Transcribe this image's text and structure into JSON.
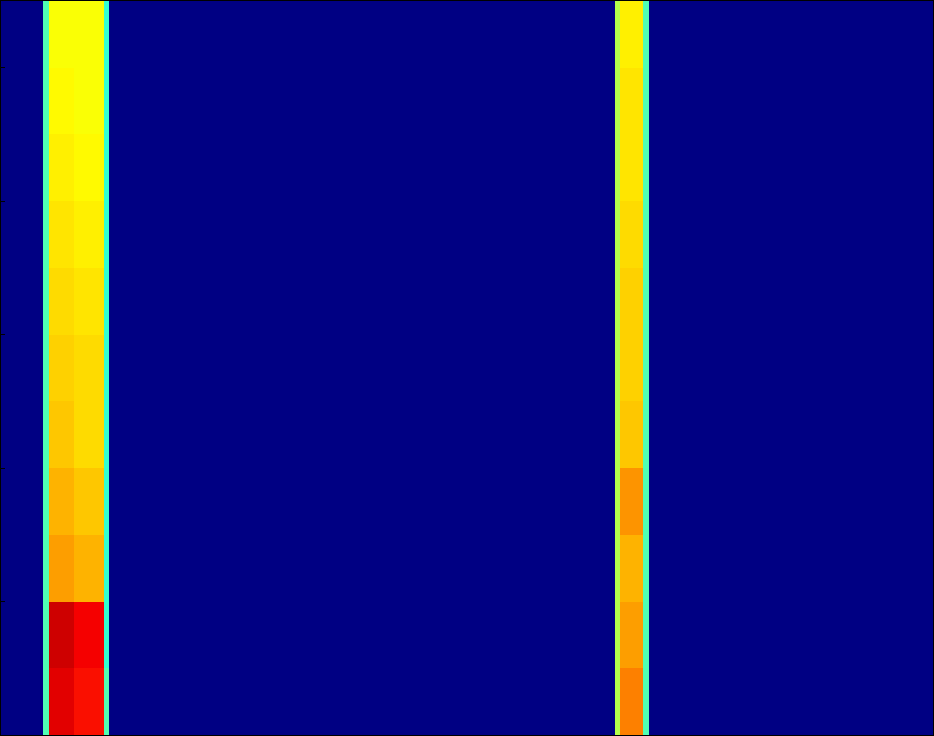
{
  "chart_data": {
    "type": "heatmap",
    "x": [
      0,
      0.315,
      0.36,
      0.55,
      0.77,
      0.81,
      4.61,
      4.65,
      4.82,
      4.87,
      7
    ],
    "y": [
      0,
      0.5,
      1.0,
      1.5,
      2.0,
      2.5,
      3.0,
      3.5,
      4.0,
      4.5,
      5.0,
      5.5
    ],
    "z": [
      [
        0,
        0.45,
        0.9,
        0.86,
        0.45,
        0,
        0.55,
        0.75,
        0.45,
        0
      ],
      [
        0,
        0.45,
        0.92,
        0.88,
        0.42,
        0,
        0.55,
        0.72,
        0.45,
        0
      ],
      [
        0,
        0.45,
        0.72,
        0.7,
        0.42,
        0,
        0.55,
        0.7,
        0.45,
        0
      ],
      [
        0,
        0.45,
        0.7,
        0.68,
        0.42,
        0,
        0.55,
        0.73,
        0.45,
        0
      ],
      [
        0,
        0.45,
        0.68,
        0.66,
        0.42,
        0,
        0.55,
        0.68,
        0.45,
        0
      ],
      [
        0,
        0.45,
        0.67,
        0.66,
        0.42,
        0,
        0.55,
        0.67,
        0.45,
        0
      ],
      [
        0,
        0.45,
        0.66,
        0.65,
        0.42,
        0,
        0.55,
        0.67,
        0.45,
        0
      ],
      [
        0,
        0.45,
        0.65,
        0.64,
        0.42,
        0,
        0.55,
        0.66,
        0.45,
        0
      ],
      [
        0,
        0.45,
        0.64,
        0.63,
        0.42,
        0,
        0.55,
        0.65,
        0.45,
        0
      ],
      [
        0,
        0.45,
        0.63,
        0.62,
        0.42,
        0,
        0.55,
        0.65,
        0.45,
        0
      ],
      [
        0,
        0.45,
        0.62,
        0.62,
        0.42,
        0,
        0.55,
        0.64,
        0.45,
        0
      ]
    ],
    "zlim": [
      0,
      1
    ],
    "xlim": [
      0,
      7
    ],
    "xticks": [],
    "ylim": [
      0,
      5.5
    ],
    "yticks": [
      1,
      2,
      3,
      4,
      5
    ],
    "tick_labels": false
  }
}
